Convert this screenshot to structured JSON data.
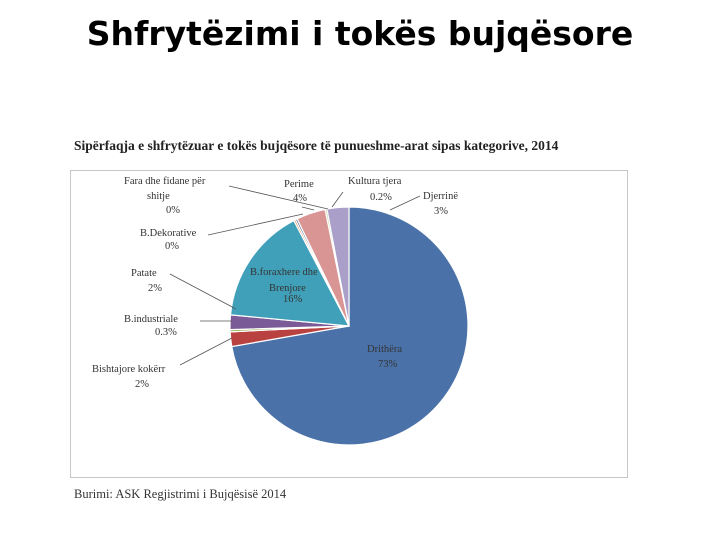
{
  "slide": {
    "title": "Shfrytëzimi i tokës bujqësore"
  },
  "chart_data": {
    "type": "pie",
    "title": "Sipërfaqja e shfrytëzuar e tokës bujqësore të punueshme-arat sipas kategorive, 2014",
    "source": "Burimi: ASK    Regjistrimi i Bujqësisë 2014",
    "slices": [
      {
        "label": "Drithëra",
        "value": 73,
        "display": "73%",
        "color": "#4a72a8"
      },
      {
        "label": "Bishtajore kokërr",
        "value": 2,
        "display": "2%",
        "color": "#b94240"
      },
      {
        "label": "B.industriale",
        "value": 0.3,
        "display": "0.3%",
        "color": "#95b24f"
      },
      {
        "label": "Patate",
        "value": 2,
        "display": "2%",
        "color": "#7a5a97"
      },
      {
        "label": "B.foraxhere dhe Brenjore",
        "value": 16,
        "display": "16%",
        "color": "#41a0b9"
      },
      {
        "label": "B.Dekorative",
        "value": 0,
        "display": "0%",
        "color": "#e07f3a"
      },
      {
        "label": "Fara dhe fidane për shitje",
        "value": 0,
        "display": "0%",
        "color": "#2d5286"
      },
      {
        "label": "Perime",
        "value": 4,
        "display": "4%",
        "color": "#d99594"
      },
      {
        "label": "Kultura tjera",
        "value": 0.2,
        "display": "0.2%",
        "color": "#b8cc8d"
      },
      {
        "label": "Djerrinë",
        "value": 3,
        "display": "3%",
        "color": "#a99fc8"
      }
    ]
  }
}
